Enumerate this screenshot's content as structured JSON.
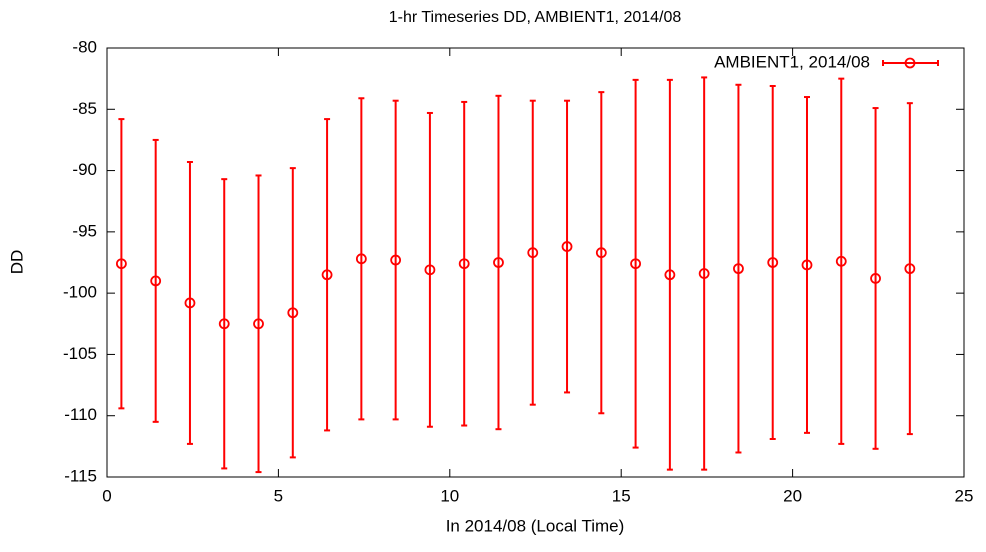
{
  "chart_data": {
    "type": "errorbar",
    "title": "1-hr Timeseries DD, AMBIENT1, 2014/08",
    "xlabel": "In 2014/08 (Local Time)",
    "ylabel": "DD",
    "legend": "top-right",
    "series": [
      {
        "name": "AMBIENT1, 2014/08",
        "color": "#ff0000",
        "x": [
          0.42,
          1.42,
          2.42,
          3.42,
          4.42,
          5.42,
          6.42,
          7.42,
          8.42,
          9.42,
          10.42,
          11.42,
          12.42,
          13.42,
          14.42,
          15.42,
          16.42,
          17.42,
          18.42,
          19.42,
          20.42,
          21.42,
          22.42,
          23.42
        ],
        "values": [
          -97.6,
          -99.0,
          -100.8,
          -102.5,
          -102.5,
          -101.6,
          -98.5,
          -97.2,
          -97.3,
          -98.1,
          -97.6,
          -97.5,
          -96.7,
          -96.2,
          -96.7,
          -97.6,
          -98.5,
          -98.4,
          -98.0,
          -97.5,
          -97.7,
          -97.4,
          -98.8,
          -98.0
        ],
        "errors": [
          11.8,
          11.5,
          11.5,
          11.8,
          12.1,
          11.8,
          12.7,
          13.1,
          13.0,
          12.8,
          13.2,
          13.6,
          12.4,
          11.9,
          13.1,
          15.0,
          15.9,
          16.0,
          15.0,
          14.4,
          13.7,
          14.9,
          13.9,
          13.5
        ]
      }
    ],
    "xlim": [
      0,
      25
    ],
    "xticks": [
      0,
      5,
      10,
      15,
      20,
      25
    ],
    "ylim": [
      -115,
      -80
    ],
    "yticks": [
      -115,
      -110,
      -105,
      -100,
      -95,
      -90,
      -85,
      -80
    ]
  }
}
